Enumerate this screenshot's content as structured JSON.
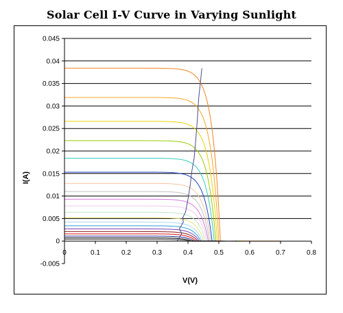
{
  "chart_data": {
    "type": "line",
    "title": "Solar Cell I-V Curve in Varying Sunlight",
    "xlabel": "V(V)",
    "ylabel": "I(A)",
    "xlim": [
      0,
      0.8
    ],
    "ylim": [
      -0.005,
      0.045
    ],
    "x_ticks": [
      "0",
      "0.1",
      "0.2",
      "0.3",
      "0.4",
      "0.5",
      "0.6",
      "0.7",
      "0.8"
    ],
    "y_ticks": [
      "-0.005",
      "0",
      "0.005",
      "0.01",
      "0.015",
      "0.02",
      "0.025",
      "0.03",
      "0.035",
      "0.04",
      "0.045"
    ],
    "grid": "horizontal",
    "legend": "none",
    "series_params": [
      {
        "isc": 0.0384,
        "voc": 0.505,
        "color": "#f58220"
      },
      {
        "isc": 0.0319,
        "voc": 0.5,
        "color": "#f5a623"
      },
      {
        "isc": 0.0266,
        "voc": 0.495,
        "color": "#e8d200"
      },
      {
        "isc": 0.0223,
        "voc": 0.49,
        "color": "#99cc00"
      },
      {
        "isc": 0.0184,
        "voc": 0.485,
        "color": "#33ccbb"
      },
      {
        "isc": 0.0153,
        "voc": 0.478,
        "color": "#1f3fbf"
      },
      {
        "isc": 0.0128,
        "voc": 0.474,
        "color": "#f7c2a0"
      },
      {
        "isc": 0.011,
        "voc": 0.47,
        "color": "#c0c0c0"
      },
      {
        "isc": 0.0093,
        "voc": 0.466,
        "color": "#d07ad8"
      },
      {
        "isc": 0.0078,
        "voc": 0.462,
        "color": "#f2c8f0"
      },
      {
        "isc": 0.0064,
        "voc": 0.457,
        "color": "#bde8c0"
      },
      {
        "isc": 0.0052,
        "voc": 0.452,
        "color": "#e8e47a"
      },
      {
        "isc": 0.0042,
        "voc": 0.447,
        "color": "#a8d8f0"
      },
      {
        "isc": 0.0034,
        "voc": 0.442,
        "color": "#2a9fd6"
      },
      {
        "isc": 0.0027,
        "voc": 0.437,
        "color": "#7b3fb5"
      },
      {
        "isc": 0.0021,
        "voc": 0.432,
        "color": "#8b1a1a"
      },
      {
        "isc": 0.0016,
        "voc": 0.426,
        "color": "#e01010"
      },
      {
        "isc": 0.0011,
        "voc": 0.42,
        "color": "#1e2a8c"
      },
      {
        "isc": 0.0007,
        "voc": 0.412,
        "color": "#000000"
      },
      {
        "isc": 0.0004,
        "voc": 0.405,
        "color": "#444444"
      }
    ],
    "max_power_line": {
      "color": "#4b4b8f",
      "points": [
        [
          0.365,
          0.0
        ],
        [
          0.38,
          0.0017
        ],
        [
          0.372,
          0.0027
        ],
        [
          0.385,
          0.0042
        ],
        [
          0.383,
          0.0052
        ],
        [
          0.392,
          0.0064
        ],
        [
          0.396,
          0.0078
        ],
        [
          0.4,
          0.0093
        ],
        [
          0.404,
          0.011
        ],
        [
          0.408,
          0.0128
        ],
        [
          0.412,
          0.0153
        ],
        [
          0.42,
          0.0184
        ],
        [
          0.425,
          0.0223
        ],
        [
          0.43,
          0.0266
        ],
        [
          0.435,
          0.0319
        ],
        [
          0.44,
          0.035
        ],
        [
          0.445,
          0.0384
        ]
      ]
    }
  }
}
